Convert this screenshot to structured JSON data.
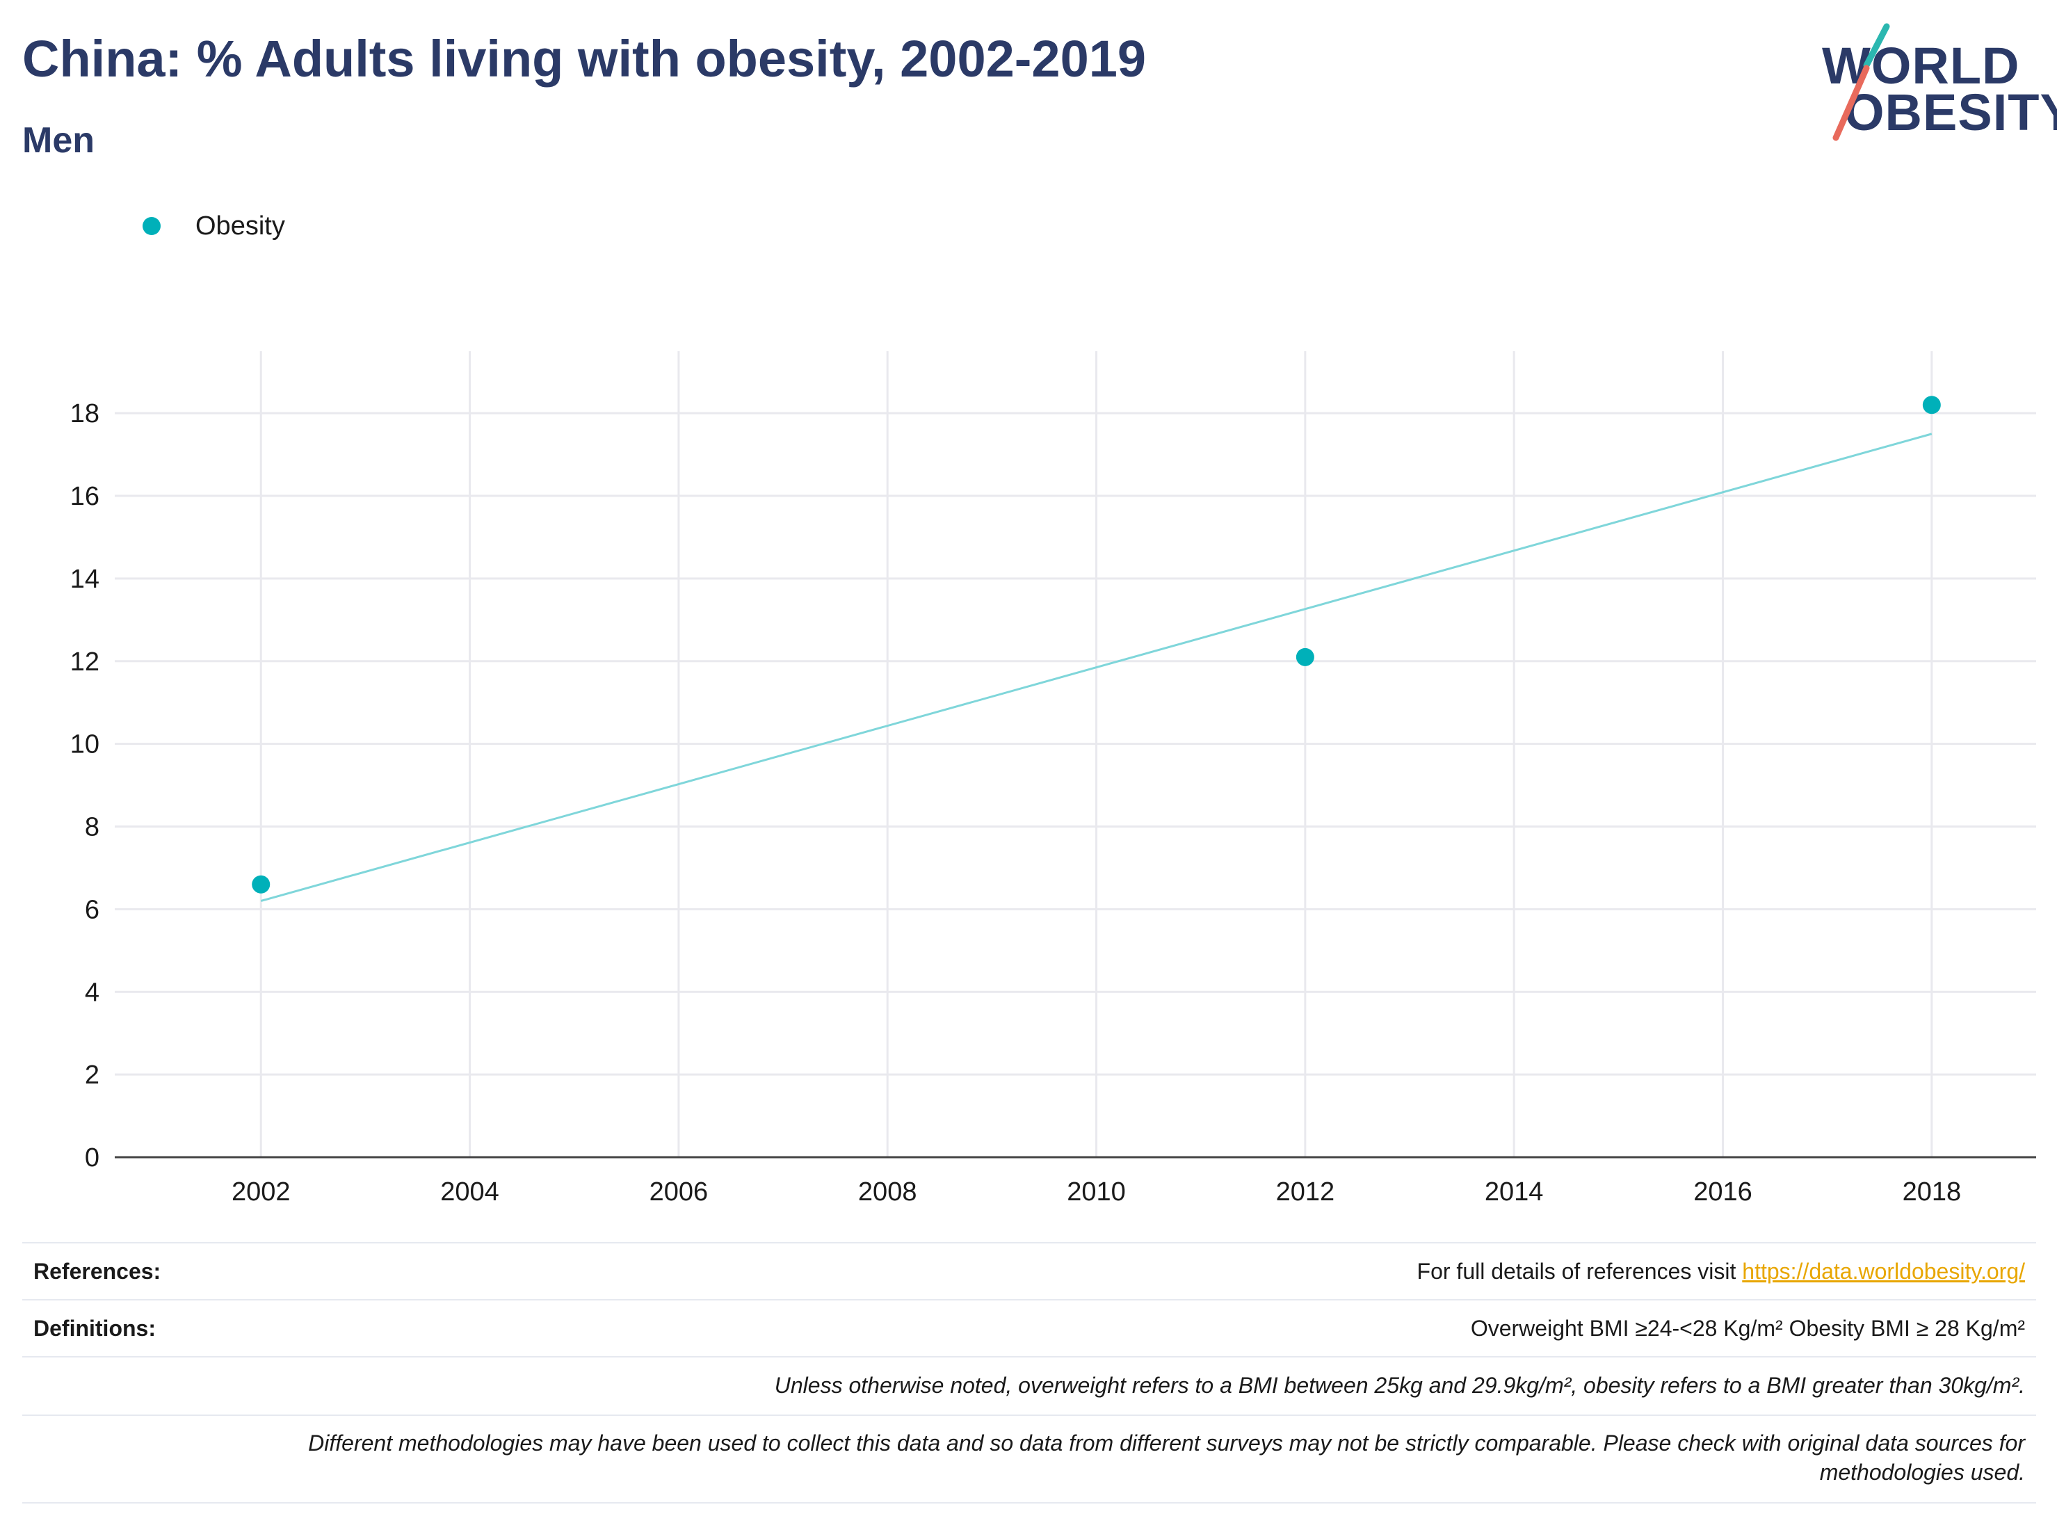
{
  "header": {
    "title": "China: % Adults living with obesity, 2002-2019",
    "subtitle": "Men"
  },
  "logo": {
    "line1": "WORLD",
    "line2": "OBESITY",
    "accent_teal": "#2bb7b0",
    "accent_coral": "#e86a5c"
  },
  "colors": {
    "series": "#00b0b9",
    "trendline": "#7fd6da",
    "grid": "#e9e9ee",
    "text_dark": "#2b3a67",
    "link": "#e8a600"
  },
  "chart_data": {
    "type": "scatter",
    "title": "China: % Adults living with obesity, 2002-2019",
    "subtitle": "Men",
    "xlabel": "",
    "ylabel": "",
    "xlim": [
      2000.6,
      2019.0
    ],
    "ylim": [
      0,
      19.5
    ],
    "x_ticks": [
      2002,
      2004,
      2006,
      2008,
      2010,
      2012,
      2014,
      2016,
      2018
    ],
    "y_ticks": [
      0,
      2,
      4,
      6,
      8,
      10,
      12,
      14,
      16,
      18
    ],
    "grid": true,
    "legend_position": "top-left",
    "series": [
      {
        "name": "Obesity",
        "points": [
          {
            "x": 2002,
            "y": 6.6
          },
          {
            "x": 2012,
            "y": 12.1
          },
          {
            "x": 2018,
            "y": 18.2
          }
        ]
      }
    ],
    "trendline": {
      "x": [
        2002,
        2018
      ],
      "y": [
        6.2,
        17.5
      ]
    }
  },
  "footer": {
    "references_label": "References:",
    "references_text": "For full details of references visit ",
    "references_link": "https://data.worldobesity.org/",
    "definitions_label": "Definitions:",
    "definitions_text": "Overweight BMI ≥24-<28 Kg/m² Obesity BMI ≥ 28 Kg/m²",
    "note1": "Unless otherwise noted, overweight refers to a BMI between 25kg and 29.9kg/m², obesity refers to a BMI greater than 30kg/m².",
    "note2_line1": "Different methodologies may have been used to collect this data and so data from different surveys may not be strictly comparable. Please check with original data sources for",
    "note2_line2": "methodologies used."
  }
}
